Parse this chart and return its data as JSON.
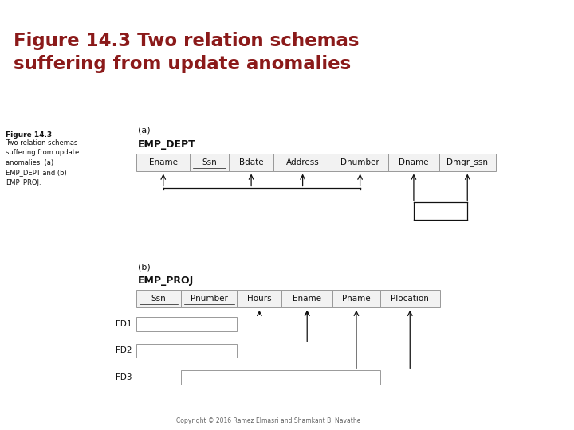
{
  "title_line1": "Figure 14.3 Two relation schemas",
  "title_line2": "suffering from update anomalies",
  "title_bg_color": "#c8c8b4",
  "title_text_color": "#8b1a1a",
  "body_bg_color": "#ffffff",
  "sidebar_color_top": "#8b1a1a",
  "sidebar_color_bot": "#4a4a8a",
  "fig_label_bold": "Figure 14.3",
  "fig_label_text": "Two relation schemas\nsuffering from update\nanomalies. (a)\nEMP_DEPT and (b)\nEMP_PROJ.",
  "section_a_label": "(a)",
  "emp_dept_label": "EMP_DEPT",
  "emp_dept_cols": [
    "Ename",
    "Ssn",
    "Bdate",
    "Address",
    "Dnumber",
    "Dname",
    "Dmgr_ssn"
  ],
  "section_b_label": "(b)",
  "emp_proj_label": "EMP_PROJ",
  "emp_proj_cols": [
    "Ssn",
    "Pnumber",
    "Hours",
    "Ename",
    "Pname",
    "Plocation"
  ],
  "fd_labels": [
    "FD1",
    "FD2",
    "FD3"
  ],
  "copyright": "Copyright © 2016 Ramez Elmasri and Shamkant B. Navathe",
  "box_border_color": "#999999",
  "arrow_color": "#111111",
  "text_color": "#111111",
  "ssn_underline": true
}
